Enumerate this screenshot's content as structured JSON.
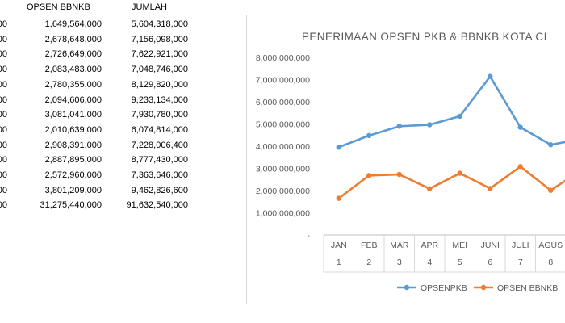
{
  "table": {
    "headers": [
      "OPSEN BBNKB",
      "JUMLAH"
    ],
    "rows": [
      {
        "lead": "00",
        "bbnkb": "1,649,564,000",
        "jumlah": "5,604,318,000"
      },
      {
        "lead": "00",
        "bbnkb": "2,678,648,000",
        "jumlah": "7,156,098,000"
      },
      {
        "lead": "00",
        "bbnkb": "2,726,649,000",
        "jumlah": "7,622,921,000"
      },
      {
        "lead": "00",
        "bbnkb": "2,083,483,000",
        "jumlah": "7,048,746,000"
      },
      {
        "lead": "00",
        "bbnkb": "2,780,355,000",
        "jumlah": "8,129,820,000"
      },
      {
        "lead": "00",
        "bbnkb": "2,094,606,000",
        "jumlah": "9,233,134,000"
      },
      {
        "lead": "00",
        "bbnkb": "3,081,041,000",
        "jumlah": "7,930,780,000"
      },
      {
        "lead": "00",
        "bbnkb": "2,010,639,000",
        "jumlah": "6,074,814,000"
      },
      {
        "lead": "00",
        "bbnkb": "2,908,391,000",
        "jumlah": "7,228,006,400"
      },
      {
        "lead": "00",
        "bbnkb": "2,887,895,000",
        "jumlah": "8,777,430,000"
      },
      {
        "lead": "00",
        "bbnkb": "2,572,960,000",
        "jumlah": "7,363,646,000"
      },
      {
        "lead": "00",
        "bbnkb": "3,801,209,000",
        "jumlah": "9,462,826,600"
      },
      {
        "lead": "00",
        "bbnkb": "31,275,440,000",
        "jumlah": "91,632,540,000"
      }
    ]
  },
  "chart_data": {
    "type": "line",
    "title": "PENERIMAAN OPSEN PKB & BBNKB KOTA CI",
    "categories": [
      "JAN",
      "FEB",
      "MAR",
      "APR",
      "MEI",
      "JUNI",
      "JULI",
      "AGUS",
      ""
    ],
    "category_numbers": [
      "1",
      "2",
      "3",
      "4",
      "5",
      "6",
      "7",
      "8",
      ""
    ],
    "y_ticks": [
      "-",
      "1,000,000,000",
      "2,000,000,000",
      "3,000,000,000",
      "4,000,000,000",
      "5,000,000,000",
      "6,000,000,000",
      "7,000,000,000",
      "8,000,000,000"
    ],
    "ylim": [
      0,
      8000000000
    ],
    "series": [
      {
        "name": "OPSENPKB",
        "color": "#5b9bd5",
        "values": [
          3954754000,
          4477450000,
          4896272000,
          4965263000,
          5349465000,
          7138528000,
          4849739000,
          4064175000,
          4319615000
        ]
      },
      {
        "name": "OPSEN BBNKB",
        "color": "#ed7d31",
        "values": [
          1649564000,
          2678648000,
          2726649000,
          2083483000,
          2780355000,
          2094606000,
          3081041000,
          2010639000,
          2908391000
        ]
      }
    ],
    "legend_position": "bottom",
    "grid": false
  }
}
